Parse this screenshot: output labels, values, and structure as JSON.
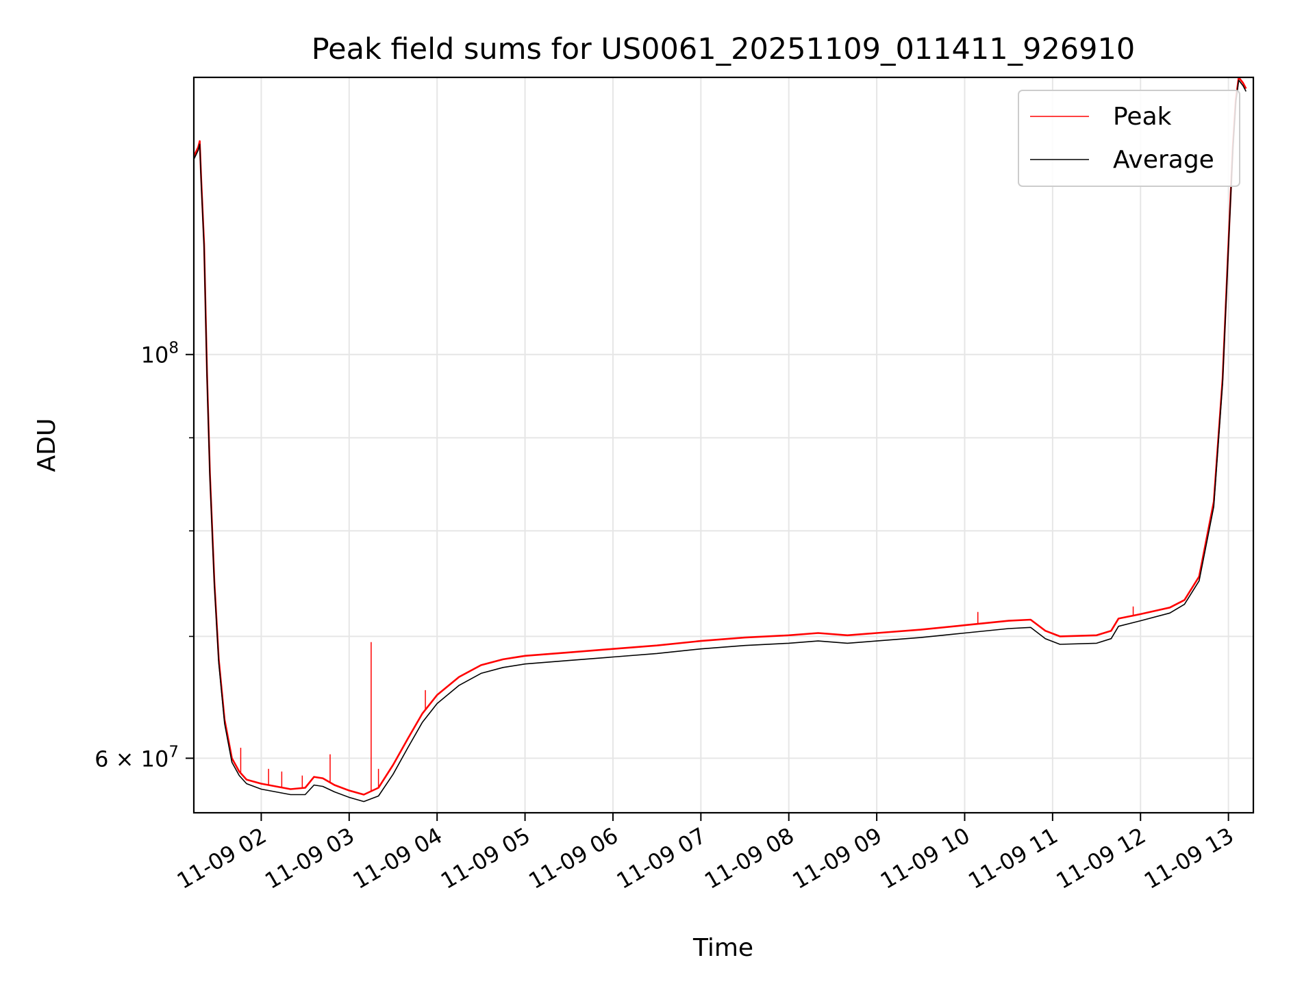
{
  "chart_data": {
    "type": "line",
    "title": "Peak field sums for US0061_20251109_011411_926910",
    "xlabel": "Time",
    "ylabel": "ADU",
    "x_scale": "time",
    "y_scale": "log",
    "xlim": [
      "2025-11-09 01:14",
      "2025-11-09 13:17"
    ],
    "ylim": [
      56000000,
      142000000
    ],
    "x_ticks": [
      {
        "value": "2025-11-09 02:00",
        "label": "11-09 02"
      },
      {
        "value": "2025-11-09 03:00",
        "label": "11-09 03"
      },
      {
        "value": "2025-11-09 04:00",
        "label": "11-09 04"
      },
      {
        "value": "2025-11-09 05:00",
        "label": "11-09 05"
      },
      {
        "value": "2025-11-09 06:00",
        "label": "11-09 06"
      },
      {
        "value": "2025-11-09 07:00",
        "label": "11-09 07"
      },
      {
        "value": "2025-11-09 08:00",
        "label": "11-09 08"
      },
      {
        "value": "2025-11-09 09:00",
        "label": "11-09 09"
      },
      {
        "value": "2025-11-09 10:00",
        "label": "11-09 10"
      },
      {
        "value": "2025-11-09 11:00",
        "label": "11-09 11"
      },
      {
        "value": "2025-11-09 12:00",
        "label": "11-09 12"
      },
      {
        "value": "2025-11-09 13:00",
        "label": "11-09 13"
      }
    ],
    "y_ticks_major": [
      {
        "value": 60000000,
        "mantissa": "6",
        "exponent": "7"
      },
      {
        "value": 100000000,
        "mantissa": "",
        "exponent": "8"
      }
    ],
    "y_ticks_minor": [
      70000000,
      80000000,
      90000000
    ],
    "grid": true,
    "legend_position": "top-right",
    "series": [
      {
        "name": "Peak",
        "color": "#ff0000",
        "points": [
          [
            "2025-11-09 01:14",
            128500000
          ],
          [
            "2025-11-09 01:17",
            130000000
          ],
          [
            "2025-11-09 01:18",
            131000000
          ],
          [
            "2025-11-09 01:19",
            125000000
          ],
          [
            "2025-11-09 01:21",
            115000000
          ],
          [
            "2025-11-09 01:23",
            97500000
          ],
          [
            "2025-11-09 01:25",
            86000000
          ],
          [
            "2025-11-09 01:28",
            75000000
          ],
          [
            "2025-11-09 01:31",
            68000000
          ],
          [
            "2025-11-09 01:35",
            63000000
          ],
          [
            "2025-11-09 01:40",
            60000000
          ],
          [
            "2025-11-09 01:45",
            59000000
          ],
          [
            "2025-11-09 01:50",
            58400000
          ],
          [
            "2025-11-09 02:00",
            58100000
          ],
          [
            "2025-11-09 02:10",
            57900000
          ],
          [
            "2025-11-09 02:20",
            57700000
          ],
          [
            "2025-11-09 02:30",
            57800000
          ],
          [
            "2025-11-09 02:36",
            58600000
          ],
          [
            "2025-11-09 02:42",
            58500000
          ],
          [
            "2025-11-09 02:50",
            58000000
          ],
          [
            "2025-11-09 03:00",
            57600000
          ],
          [
            "2025-11-09 03:10",
            57300000
          ],
          [
            "2025-11-09 03:20",
            57800000
          ],
          [
            "2025-11-09 03:30",
            59500000
          ],
          [
            "2025-11-09 03:40",
            61500000
          ],
          [
            "2025-11-09 03:50",
            63500000
          ],
          [
            "2025-11-09 04:00",
            65000000
          ],
          [
            "2025-11-09 04:15",
            66500000
          ],
          [
            "2025-11-09 04:30",
            67500000
          ],
          [
            "2025-11-09 04:45",
            68000000
          ],
          [
            "2025-11-09 05:00",
            68300000
          ],
          [
            "2025-11-09 05:30",
            68600000
          ],
          [
            "2025-11-09 06:00",
            68900000
          ],
          [
            "2025-11-09 06:30",
            69200000
          ],
          [
            "2025-11-09 07:00",
            69600000
          ],
          [
            "2025-11-09 07:30",
            69900000
          ],
          [
            "2025-11-09 08:00",
            70100000
          ],
          [
            "2025-11-09 08:20",
            70300000
          ],
          [
            "2025-11-09 08:40",
            70100000
          ],
          [
            "2025-11-09 09:00",
            70300000
          ],
          [
            "2025-11-09 09:30",
            70600000
          ],
          [
            "2025-11-09 10:00",
            71000000
          ],
          [
            "2025-11-09 10:30",
            71400000
          ],
          [
            "2025-11-09 10:45",
            71500000
          ],
          [
            "2025-11-09 10:55",
            70500000
          ],
          [
            "2025-11-09 11:05",
            70000000
          ],
          [
            "2025-11-09 11:30",
            70100000
          ],
          [
            "2025-11-09 11:40",
            70500000
          ],
          [
            "2025-11-09 11:45",
            71600000
          ],
          [
            "2025-11-09 12:00",
            72000000
          ],
          [
            "2025-11-09 12:20",
            72600000
          ],
          [
            "2025-11-09 12:30",
            73300000
          ],
          [
            "2025-11-09 12:40",
            75500000
          ],
          [
            "2025-11-09 12:50",
            83000000
          ],
          [
            "2025-11-09 12:56",
            97000000
          ],
          [
            "2025-11-09 13:00",
            115000000
          ],
          [
            "2025-11-09 13:03",
            130000000
          ],
          [
            "2025-11-09 13:05",
            138000000
          ],
          [
            "2025-11-09 13:07",
            142000000
          ],
          [
            "2025-11-09 13:10",
            141000000
          ],
          [
            "2025-11-09 13:12",
            140000000
          ]
        ],
        "spikes": [
          [
            "2025-11-09 01:46",
            60800000
          ],
          [
            "2025-11-09 02:05",
            59200000
          ],
          [
            "2025-11-09 02:14",
            59000000
          ],
          [
            "2025-11-09 02:28",
            58700000
          ],
          [
            "2025-11-09 02:47",
            60300000
          ],
          [
            "2025-11-09 03:15",
            69500000
          ],
          [
            "2025-11-09 03:20",
            59200000
          ],
          [
            "2025-11-09 03:52",
            65400000
          ],
          [
            "2025-11-09 10:09",
            72200000
          ],
          [
            "2025-11-09 11:55",
            72700000
          ]
        ]
      },
      {
        "name": "Average",
        "color": "#000000",
        "points": [
          [
            "2025-11-09 01:14",
            128000000
          ],
          [
            "2025-11-09 01:17",
            129500000
          ],
          [
            "2025-11-09 01:18",
            130500000
          ],
          [
            "2025-11-09 01:19",
            124500000
          ],
          [
            "2025-11-09 01:21",
            114500000
          ],
          [
            "2025-11-09 01:23",
            97000000
          ],
          [
            "2025-11-09 01:25",
            85600000
          ],
          [
            "2025-11-09 01:28",
            74700000
          ],
          [
            "2025-11-09 01:31",
            67700000
          ],
          [
            "2025-11-09 01:35",
            62700000
          ],
          [
            "2025-11-09 01:40",
            59700000
          ],
          [
            "2025-11-09 01:45",
            58700000
          ],
          [
            "2025-11-09 01:50",
            58100000
          ],
          [
            "2025-11-09 02:00",
            57700000
          ],
          [
            "2025-11-09 02:10",
            57500000
          ],
          [
            "2025-11-09 02:20",
            57300000
          ],
          [
            "2025-11-09 02:30",
            57300000
          ],
          [
            "2025-11-09 02:36",
            58000000
          ],
          [
            "2025-11-09 02:42",
            57900000
          ],
          [
            "2025-11-09 02:50",
            57500000
          ],
          [
            "2025-11-09 03:00",
            57100000
          ],
          [
            "2025-11-09 03:10",
            56800000
          ],
          [
            "2025-11-09 03:20",
            57200000
          ],
          [
            "2025-11-09 03:30",
            58800000
          ],
          [
            "2025-11-09 03:40",
            60800000
          ],
          [
            "2025-11-09 03:50",
            62800000
          ],
          [
            "2025-11-09 04:00",
            64300000
          ],
          [
            "2025-11-09 04:15",
            65800000
          ],
          [
            "2025-11-09 04:30",
            66800000
          ],
          [
            "2025-11-09 04:45",
            67300000
          ],
          [
            "2025-11-09 05:00",
            67600000
          ],
          [
            "2025-11-09 05:30",
            67900000
          ],
          [
            "2025-11-09 06:00",
            68200000
          ],
          [
            "2025-11-09 06:30",
            68500000
          ],
          [
            "2025-11-09 07:00",
            68900000
          ],
          [
            "2025-11-09 07:30",
            69200000
          ],
          [
            "2025-11-09 08:00",
            69400000
          ],
          [
            "2025-11-09 08:20",
            69600000
          ],
          [
            "2025-11-09 08:40",
            69400000
          ],
          [
            "2025-11-09 09:00",
            69600000
          ],
          [
            "2025-11-09 09:30",
            69900000
          ],
          [
            "2025-11-09 10:00",
            70300000
          ],
          [
            "2025-11-09 10:30",
            70700000
          ],
          [
            "2025-11-09 10:45",
            70800000
          ],
          [
            "2025-11-09 10:55",
            69800000
          ],
          [
            "2025-11-09 11:05",
            69300000
          ],
          [
            "2025-11-09 11:30",
            69400000
          ],
          [
            "2025-11-09 11:40",
            69800000
          ],
          [
            "2025-11-09 11:45",
            70900000
          ],
          [
            "2025-11-09 12:00",
            71400000
          ],
          [
            "2025-11-09 12:20",
            72100000
          ],
          [
            "2025-11-09 12:30",
            72900000
          ],
          [
            "2025-11-09 12:40",
            75100000
          ],
          [
            "2025-11-09 12:50",
            82500000
          ],
          [
            "2025-11-09 12:56",
            96500000
          ],
          [
            "2025-11-09 13:00",
            114500000
          ],
          [
            "2025-11-09 13:03",
            129500000
          ],
          [
            "2025-11-09 13:05",
            137500000
          ],
          [
            "2025-11-09 13:07",
            141500000
          ],
          [
            "2025-11-09 13:10",
            140500000
          ],
          [
            "2025-11-09 13:12",
            139500000
          ]
        ]
      }
    ]
  }
}
